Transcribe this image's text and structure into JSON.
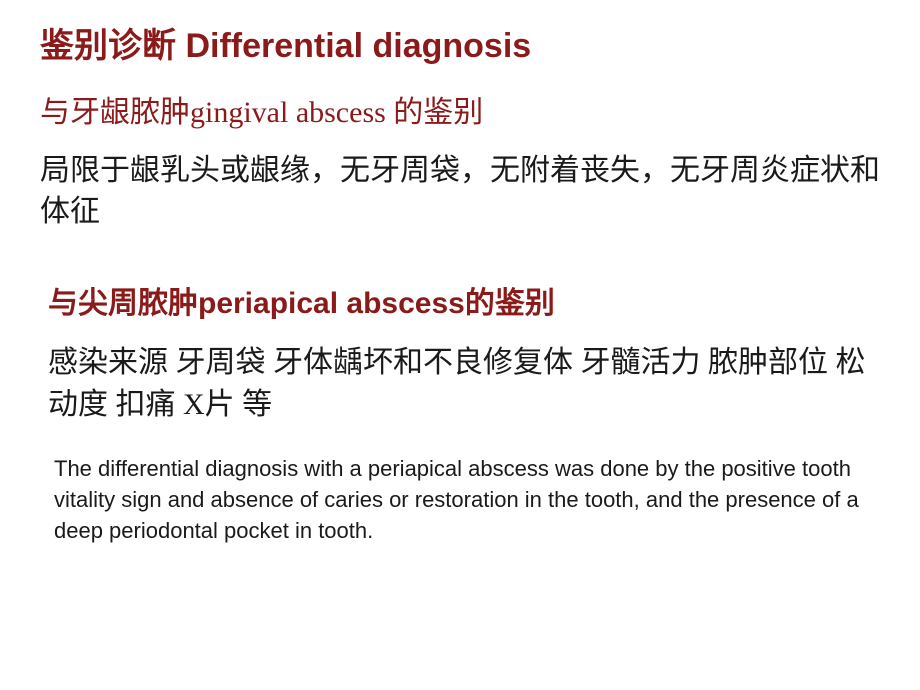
{
  "colors": {
    "heading": "#8b1a1a",
    "body": "#1a1a1a",
    "background": "#ffffff"
  },
  "title": "鉴别诊断  Differential diagnosis",
  "section1": {
    "subheading": "与牙龈脓肿gingival abscess 的鉴别",
    "body": "局限于龈乳头或龈缘，无牙周袋，无附着丧失，无牙周炎症状和体征"
  },
  "section2": {
    "subheading": "与尖周脓肿periapical abscess的鉴别",
    "body": "感染来源  牙周袋 牙体龋坏和不良修复体 牙髓活力 脓肿部位 松动度 扣痛  X片 等"
  },
  "english_note": "The differential diagnosis with a periapical abscess was done by the positive tooth vitality sign and absence of caries or restoration in the tooth, and the presence of a deep periodontal pocket  in  tooth."
}
